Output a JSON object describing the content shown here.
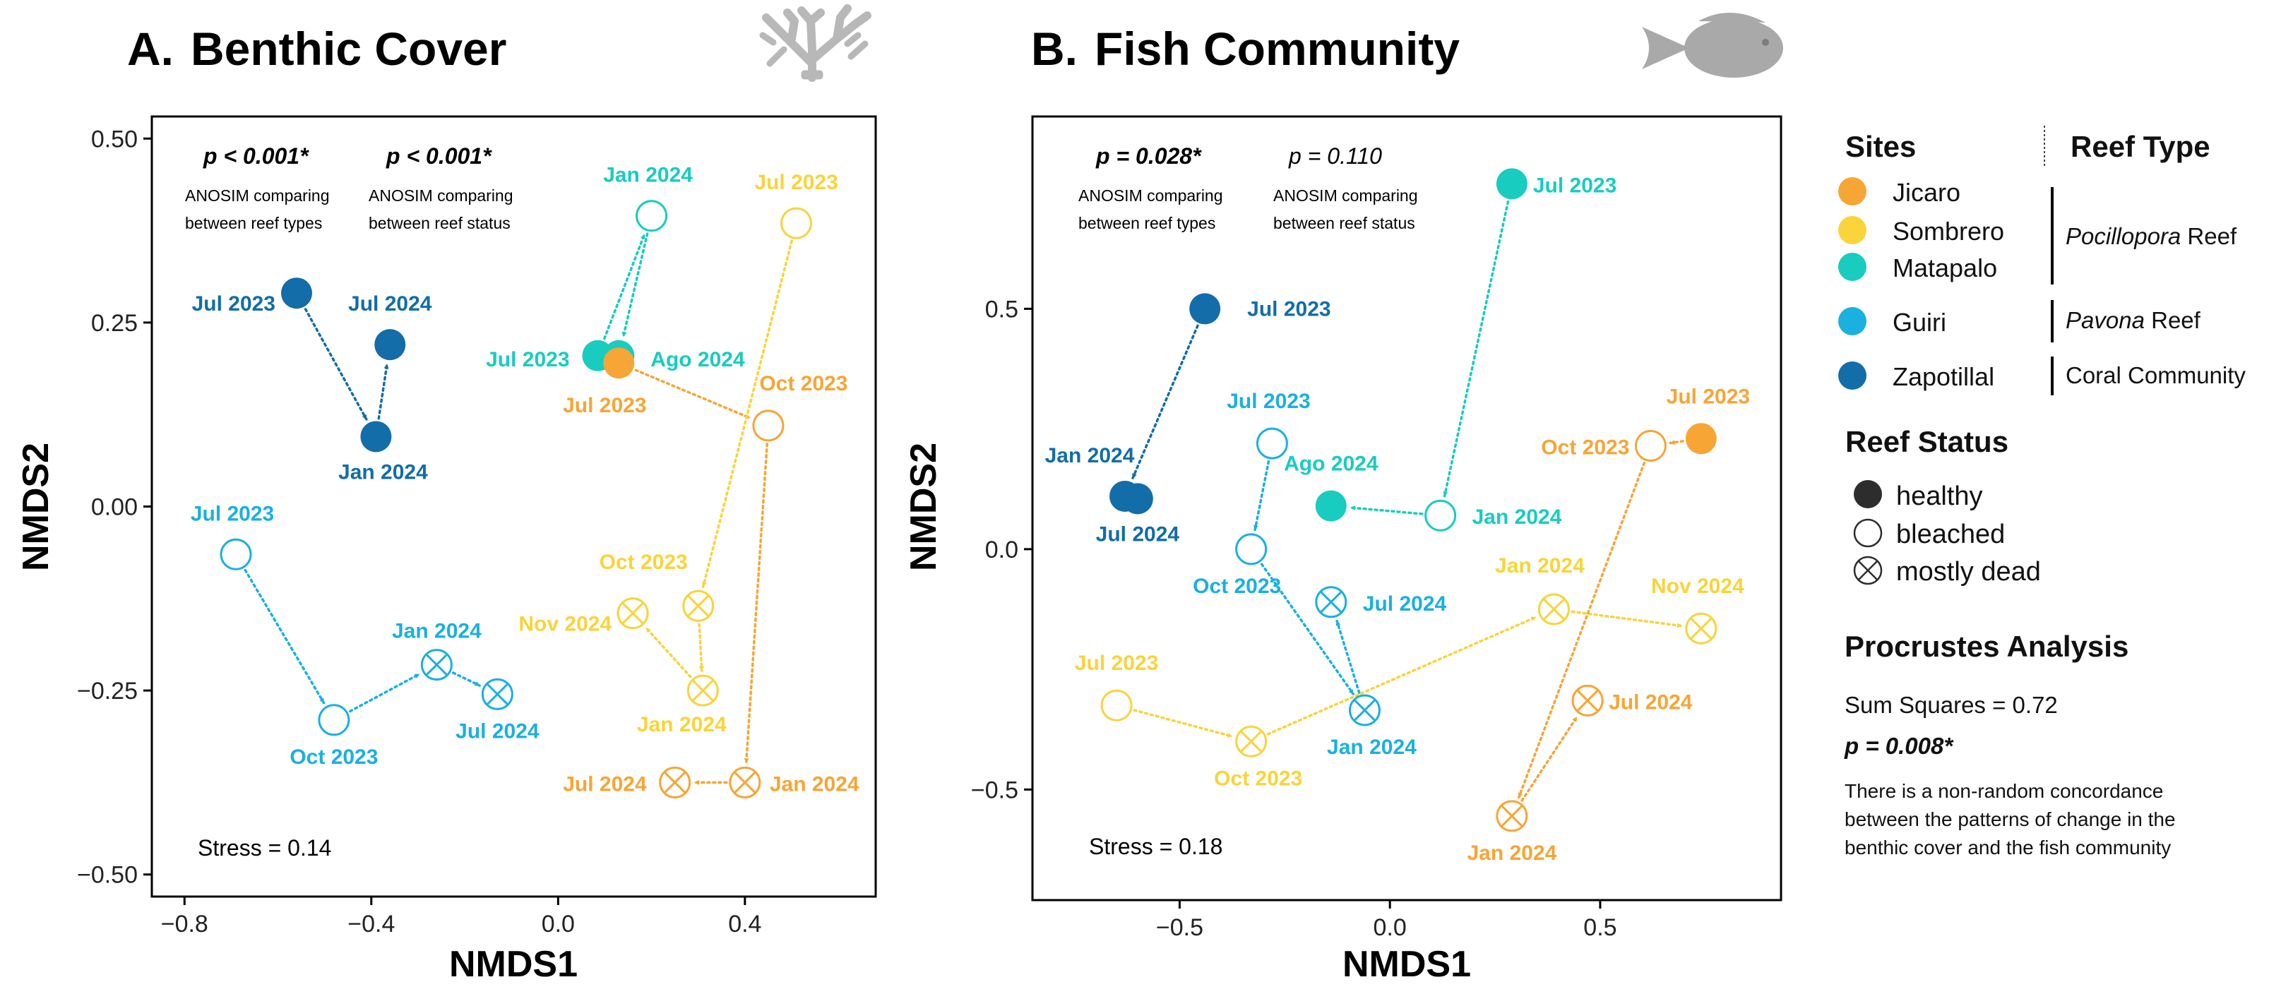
{
  "colors": {
    "Jicaro": "#f7a535",
    "Sombrero": "#f9d43a",
    "Matapalo": "#18ccc0",
    "Guiri": "#1ab0e0",
    "Zapotillal": "#126da8",
    "healthy": "#2d2d2d"
  },
  "chart_data": [
    {
      "type": "scatter",
      "panel_letter": "A.",
      "title": "Benthic Cover",
      "xlabel": "NMDS1",
      "ylabel": "NMDS2",
      "xlim": [
        -0.87,
        0.68
      ],
      "ylim": [
        -0.53,
        0.53
      ],
      "xticks": [
        -0.8,
        -0.4,
        0.0,
        0.4
      ],
      "xtick_labels": [
        "−0.8",
        "−0.4",
        "0.0",
        "0.4"
      ],
      "yticks": [
        0.5,
        0.25,
        0.0,
        -0.25,
        -0.5
      ],
      "ytick_labels": [
        "0.50",
        "0.25",
        "0.00",
        "−0.25",
        "−0.50"
      ],
      "stress": "Stress = 0.14",
      "anosim": [
        {
          "p": "p < 0.001*",
          "line1": "ANOSIM comparing",
          "line2": "between reef types",
          "bold": true
        },
        {
          "p": "p < 0.001*",
          "line1": "ANOSIM comparing",
          "line2": "between reef status",
          "bold": true
        }
      ],
      "points": [
        {
          "site": "Zapotillal",
          "status": "healthy",
          "label": "Jul 2023",
          "x": -0.56,
          "y": 0.29
        },
        {
          "site": "Zapotillal",
          "status": "healthy",
          "label": "Jan 2024",
          "x": -0.39,
          "y": 0.095
        },
        {
          "site": "Zapotillal",
          "status": "healthy",
          "label": "Jul 2024",
          "x": -0.36,
          "y": 0.22
        },
        {
          "site": "Matapalo",
          "status": "healthy",
          "label": "Jul 2023",
          "x": 0.085,
          "y": 0.205
        },
        {
          "site": "Matapalo",
          "status": "bleached",
          "label": "Jan 2024",
          "x": 0.2,
          "y": 0.395
        },
        {
          "site": "Matapalo",
          "status": "healthy",
          "label": "Ago 2024",
          "x": 0.13,
          "y": 0.205
        },
        {
          "site": "Jicaro",
          "status": "healthy",
          "label": "Jul 2023",
          "x": 0.13,
          "y": 0.195
        },
        {
          "site": "Jicaro",
          "status": "bleached",
          "label": "Oct 2023",
          "x": 0.45,
          "y": 0.11
        },
        {
          "site": "Jicaro",
          "status": "dead",
          "label": "Jan 2024",
          "x": 0.4,
          "y": -0.375
        },
        {
          "site": "Jicaro",
          "status": "dead",
          "label": "Jul 2024",
          "x": 0.25,
          "y": -0.375
        },
        {
          "site": "Sombrero",
          "status": "bleached",
          "label": "Jul 2023",
          "x": 0.51,
          "y": 0.385
        },
        {
          "site": "Sombrero",
          "status": "dead",
          "label": "Oct 2023",
          "x": 0.3,
          "y": -0.135
        },
        {
          "site": "Sombrero",
          "status": "dead",
          "label": "Jan 2024",
          "x": 0.31,
          "y": -0.25
        },
        {
          "site": "Sombrero",
          "status": "dead",
          "label": "Nov 2024",
          "x": 0.16,
          "y": -0.145
        },
        {
          "site": "Guiri",
          "status": "bleached",
          "label": "Jul 2023",
          "x": -0.69,
          "y": -0.065
        },
        {
          "site": "Guiri",
          "status": "bleached",
          "label": "Oct 2023",
          "x": -0.48,
          "y": -0.29
        },
        {
          "site": "Guiri",
          "status": "dead",
          "label": "Jan 2024",
          "x": -0.26,
          "y": -0.215
        },
        {
          "site": "Guiri",
          "status": "dead",
          "label": "Jul 2024",
          "x": -0.13,
          "y": -0.255
        }
      ],
      "paths": [
        {
          "site": "Zapotillal",
          "seq": [
            "Jul 2023",
            "Jan 2024",
            "Jul 2024"
          ]
        },
        {
          "site": "Matapalo",
          "seq": [
            "Jul 2023",
            "Jan 2024",
            "Ago 2024"
          ]
        },
        {
          "site": "Jicaro",
          "seq": [
            "Jul 2023",
            "Oct 2023",
            "Jan 2024",
            "Jul 2024"
          ]
        },
        {
          "site": "Sombrero",
          "seq": [
            "Jul 2023",
            "Oct 2023",
            "Jan 2024",
            "Nov 2024"
          ]
        },
        {
          "site": "Guiri",
          "seq": [
            "Jul 2023",
            "Oct 2023",
            "Jan 2024",
            "Jul 2024"
          ]
        }
      ]
    },
    {
      "type": "scatter",
      "panel_letter": "B.",
      "title": "Fish Community",
      "xlabel": "NMDS1",
      "ylabel": "NMDS2",
      "xlim": [
        -0.85,
        0.93
      ],
      "ylim": [
        -0.73,
        0.9
      ],
      "xticks": [
        -0.5,
        0.0,
        0.5
      ],
      "xtick_labels": [
        "−0.5",
        "0.0",
        "0.5"
      ],
      "yticks": [
        0.5,
        0.0,
        -0.5
      ],
      "ytick_labels": [
        "0.5",
        "0.0",
        "−0.5"
      ],
      "stress": "Stress = 0.18",
      "anosim": [
        {
          "p": "p = 0.028*",
          "line1": "ANOSIM comparing",
          "line2": "between reef types",
          "bold": true
        },
        {
          "p": "p = 0.110",
          "line1": "ANOSIM comparing",
          "line2": "between reef status",
          "bold": false
        }
      ],
      "points": [
        {
          "site": "Zapotillal",
          "status": "healthy",
          "label": "Jul 2023",
          "x": -0.44,
          "y": 0.5
        },
        {
          "site": "Zapotillal",
          "status": "healthy",
          "label": "Jan 2024",
          "x": -0.63,
          "y": 0.11
        },
        {
          "site": "Zapotillal",
          "status": "healthy",
          "label": "Jul 2024",
          "x": -0.6,
          "y": 0.105
        },
        {
          "site": "Matapalo",
          "status": "healthy",
          "label": "Jul 2023",
          "x": 0.29,
          "y": 0.76
        },
        {
          "site": "Matapalo",
          "status": "bleached",
          "label": "Jan 2024",
          "x": 0.12,
          "y": 0.07
        },
        {
          "site": "Matapalo",
          "status": "healthy",
          "label": "Ago 2024",
          "x": -0.14,
          "y": 0.09
        },
        {
          "site": "Guiri",
          "status": "bleached",
          "label": "Jul 2023",
          "x": -0.28,
          "y": 0.22
        },
        {
          "site": "Guiri",
          "status": "bleached",
          "label": "Oct 2023",
          "x": -0.33,
          "y": 0.0
        },
        {
          "site": "Guiri",
          "status": "dead",
          "label": "Jan 2024",
          "x": -0.06,
          "y": -0.335
        },
        {
          "site": "Guiri",
          "status": "dead",
          "label": "Jul 2024",
          "x": -0.14,
          "y": -0.11
        },
        {
          "site": "Sombrero",
          "status": "bleached",
          "label": "Jul 2023",
          "x": -0.65,
          "y": -0.325
        },
        {
          "site": "Sombrero",
          "status": "dead",
          "label": "Oct 2023",
          "x": -0.33,
          "y": -0.4
        },
        {
          "site": "Sombrero",
          "status": "dead",
          "label": "Jan 2024",
          "x": 0.39,
          "y": -0.125
        },
        {
          "site": "Sombrero",
          "status": "dead",
          "label": "Nov 2024",
          "x": 0.74,
          "y": -0.165
        },
        {
          "site": "Jicaro",
          "status": "healthy",
          "label": "Jul 2023",
          "x": 0.74,
          "y": 0.23
        },
        {
          "site": "Jicaro",
          "status": "bleached",
          "label": "Oct 2023",
          "x": 0.62,
          "y": 0.215
        },
        {
          "site": "Jicaro",
          "status": "dead",
          "label": "Jan 2024",
          "x": 0.29,
          "y": -0.555
        },
        {
          "site": "Jicaro",
          "status": "dead",
          "label": "Jul 2024",
          "x": 0.47,
          "y": -0.315
        }
      ],
      "paths": [
        {
          "site": "Zapotillal",
          "seq": [
            "Jul 2023",
            "Jan 2024",
            "Jul 2024"
          ]
        },
        {
          "site": "Matapalo",
          "seq": [
            "Jul 2023",
            "Jan 2024",
            "Ago 2024"
          ]
        },
        {
          "site": "Guiri",
          "seq": [
            "Jul 2023",
            "Oct 2023",
            "Jan 2024",
            "Jul 2024"
          ]
        },
        {
          "site": "Sombrero",
          "seq": [
            "Jul 2023",
            "Oct 2023",
            "Jan 2024",
            "Nov 2024"
          ]
        },
        {
          "site": "Jicaro",
          "seq": [
            "Jul 2023",
            "Oct 2023",
            "Jan 2024",
            "Jul 2024"
          ]
        }
      ]
    }
  ],
  "legend": {
    "sites_title": "Sites",
    "reef_type_title": "Reef Type",
    "sites": [
      "Jicaro",
      "Sombrero",
      "Matapalo",
      "Guiri",
      "Zapotillal"
    ],
    "reef_types": [
      {
        "italic": "Pocillopora",
        "rest": " Reef"
      },
      {
        "italic": "Pavona",
        "rest": " Reef"
      },
      {
        "italic": "",
        "rest": "Coral Community"
      }
    ],
    "status_title": "Reef Status",
    "statuses": [
      "healthy",
      "bleached",
      "mostly dead"
    ]
  },
  "procrustes": {
    "title": "Procrustes Analysis",
    "sum_squares": "Sum Squares = 0.72",
    "p": "p = 0.008*",
    "text": [
      "There is a non-random concordance",
      "between the patterns of change in the",
      "benthic cover and the fish community"
    ]
  }
}
